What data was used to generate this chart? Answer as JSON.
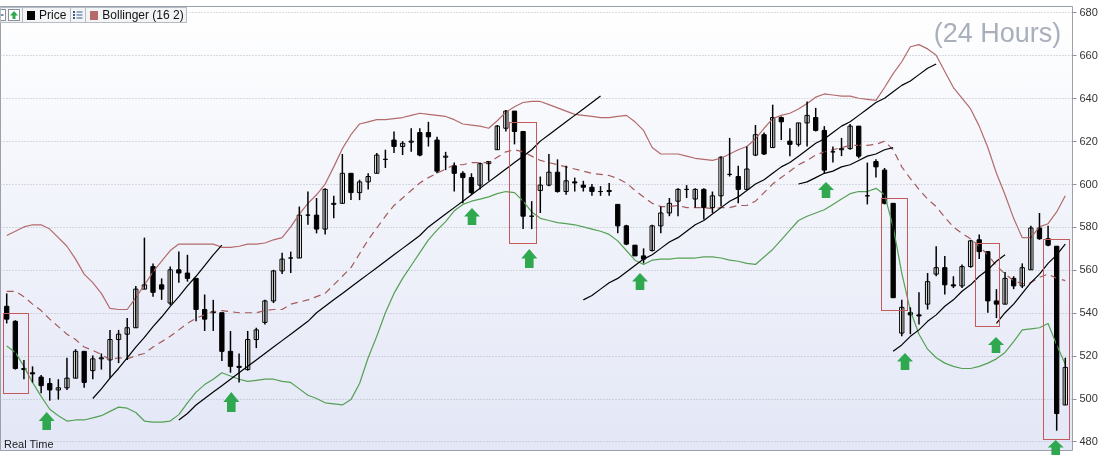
{
  "chart_data": {
    "type": "candlestick",
    "title": "(24 Hours)",
    "annotations": [
      "Real Time"
    ],
    "categories": [
      null,
      null,
      null,
      null,
      null,
      null,
      null,
      null,
      null,
      null,
      null,
      null,
      null,
      null,
      null,
      null,
      null,
      null,
      null,
      null,
      null,
      null,
      null,
      null,
      null,
      null,
      null,
      null,
      null,
      null,
      null,
      null,
      null,
      null,
      null,
      null,
      null,
      null,
      null,
      null,
      null,
      null,
      null,
      null,
      null,
      null,
      null,
      null,
      null,
      null,
      null,
      null,
      null,
      null,
      null,
      null,
      null,
      null,
      null,
      null,
      null,
      null,
      null,
      null,
      null,
      null,
      null,
      null,
      null,
      null,
      null,
      null,
      null,
      null,
      null,
      null,
      null,
      null,
      null,
      null,
      null,
      null,
      null,
      null,
      null,
      null,
      null,
      null,
      null,
      null,
      null,
      null,
      null,
      null,
      null,
      null,
      null,
      null,
      null,
      null,
      null,
      null,
      null,
      null,
      null,
      null,
      null,
      null,
      null,
      null,
      null,
      null,
      null,
      null,
      null,
      null,
      null,
      null,
      null,
      null,
      null,
      null,
      null,
      null
    ],
    "series": [
      {
        "name": "Price",
        "type": "candlestick",
        "color": "#000000",
        "ohlc": [
          [
            543,
            549,
            535,
            537
          ],
          [
            536,
            536.5,
            513.5,
            514
          ],
          [
            514,
            518,
            509,
            513.5
          ],
          [
            512,
            515,
            507.5,
            511.5
          ],
          [
            510,
            511,
            502.5,
            506
          ],
          [
            507,
            509.5,
            499,
            504
          ],
          [
            504,
            509,
            499.5,
            505
          ],
          [
            505,
            519,
            504,
            509.5
          ],
          [
            509.5,
            523,
            509.5,
            522
          ],
          [
            522,
            522,
            505,
            507.5
          ],
          [
            513,
            520,
            509,
            518.5
          ],
          [
            518.5,
            521,
            513.5,
            519
          ],
          [
            518,
            532,
            509.5,
            527.5
          ],
          [
            527.5,
            532,
            516.5,
            530
          ],
          [
            530,
            537.5,
            518,
            533
          ],
          [
            533,
            552.5,
            533,
            551
          ],
          [
            551,
            575,
            551,
            553
          ],
          [
            561.5,
            563,
            547.5,
            549.5
          ],
          [
            553,
            556,
            546,
            551
          ],
          [
            544.5,
            561.5,
            543.5,
            560
          ],
          [
            560,
            568.5,
            554,
            558.5
          ],
          [
            558.5,
            567,
            554.5,
            556
          ],
          [
            556,
            556,
            536,
            541.5
          ],
          [
            541.5,
            548.5,
            531.5,
            537
          ],
          [
            540.5,
            546,
            531.5,
            540
          ],
          [
            540,
            540,
            517.5,
            522
          ],
          [
            522,
            531.5,
            512,
            515
          ],
          [
            515,
            521,
            507.5,
            514.5
          ],
          [
            513.5,
            531.5,
            513,
            527.5
          ],
          [
            527.5,
            533,
            523.5,
            532
          ],
          [
            535.5,
            546,
            534.5,
            545.5
          ],
          [
            545.5,
            560,
            544.5,
            559.5
          ],
          [
            559.5,
            568,
            558,
            565
          ],
          [
            565.5,
            568.5,
            558.5,
            565.5
          ],
          [
            565.5,
            589.5,
            565.5,
            585.5
          ],
          [
            585.5,
            596.5,
            581,
            585.5
          ],
          [
            585.5,
            593.5,
            577,
            579
          ],
          [
            579,
            598,
            576.5,
            597.5
          ],
          [
            590.5,
            594.5,
            584,
            591
          ],
          [
            591,
            614,
            591,
            605
          ],
          [
            605,
            605,
            592.5,
            596
          ],
          [
            596,
            602,
            592.5,
            601
          ],
          [
            601,
            605,
            597.5,
            603.5
          ],
          [
            605,
            614.5,
            605,
            613.5
          ],
          [
            611.5,
            616,
            607.5,
            611.5
          ],
          [
            620.5,
            624.5,
            614.5,
            617.5
          ],
          [
            617.5,
            620,
            613.5,
            619
          ],
          [
            619.5,
            626,
            615,
            620
          ],
          [
            624,
            626,
            613,
            613.5
          ],
          [
            624,
            629,
            617.5,
            622
          ],
          [
            620.5,
            622,
            605,
            606
          ],
          [
            612.5,
            615,
            606.5,
            613
          ],
          [
            608.5,
            610,
            596.5,
            605
          ],
          [
            605,
            606,
            591,
            603
          ],
          [
            603,
            605,
            595,
            596
          ],
          [
            599.5,
            610,
            597.5,
            609.5
          ],
          [
            609.5,
            610.5,
            601.5,
            610.5
          ],
          [
            616,
            627.5,
            616,
            627
          ],
          [
            626,
            634.5,
            624.5,
            634
          ],
          [
            634,
            634,
            618.5,
            624.5
          ],
          [
            624.5,
            624.5,
            579,
            585
          ],
          [
            585,
            592,
            579,
            585
          ],
          [
            597,
            603.5,
            586.5,
            599.5
          ],
          [
            599.5,
            614,
            599,
            605.5
          ],
          [
            605.5,
            611.5,
            596,
            596.5
          ],
          [
            596.5,
            608.5,
            595,
            601.5
          ],
          [
            601,
            603,
            596.5,
            600.5
          ],
          [
            599.5,
            601.5,
            596.5,
            598.5
          ],
          [
            598.5,
            600,
            594.5,
            596.5
          ],
          [
            596.5,
            599,
            594.5,
            596.5
          ],
          [
            596.5,
            600.5,
            594.5,
            597
          ],
          [
            590.5,
            590.5,
            577,
            580.5
          ],
          [
            580.5,
            581,
            571.5,
            572
          ],
          [
            571.5,
            571.5,
            566.5,
            566.5
          ],
          [
            566.5,
            570,
            563,
            565
          ],
          [
            569,
            581,
            568.5,
            580.5
          ],
          [
            580.5,
            589.5,
            577,
            586.5
          ],
          [
            586.5,
            593.5,
            585,
            591
          ],
          [
            592,
            598,
            585,
            597.5
          ],
          [
            597.5,
            599.5,
            593.5,
            597.5
          ],
          [
            593,
            598,
            589,
            597.5
          ],
          [
            597.5,
            598,
            583.5,
            589
          ],
          [
            589,
            596.5,
            586.5,
            594.5
          ],
          [
            594.5,
            613,
            589.5,
            612.5
          ],
          [
            604.5,
            621.5,
            603.5,
            604.5
          ],
          [
            603.5,
            608.5,
            591,
            597.5
          ],
          [
            597.5,
            617.5,
            597.5,
            607
          ],
          [
            613.5,
            627.5,
            613,
            623
          ],
          [
            623,
            624,
            613.5,
            614
          ],
          [
            617,
            637,
            617,
            631
          ],
          [
            631,
            631.5,
            620.5,
            629
          ],
          [
            620,
            626,
            613,
            618.5
          ],
          [
            618.5,
            628.5,
            617.5,
            628.5
          ],
          [
            628.5,
            638.5,
            617.5,
            632
          ],
          [
            631,
            635.5,
            624.5,
            625
          ],
          [
            625,
            627,
            605,
            606.5
          ],
          [
            615,
            617.5,
            610,
            615
          ],
          [
            616,
            621.5,
            613,
            616.5
          ],
          [
            616.5,
            628,
            616,
            627
          ],
          [
            627,
            627,
            612,
            613
          ],
          [
            594.5,
            610,
            590.5,
            594.5
          ],
          [
            610.5,
            611.5,
            603,
            608
          ],
          [
            606.5,
            607.5,
            590.5,
            591
          ],
          [
            591,
            591,
            547,
            547
          ],
          [
            530.5,
            546,
            529,
            542.5
          ],
          [
            540,
            542.5,
            530,
            539
          ],
          [
            539,
            549.5,
            534.5,
            538.5
          ],
          [
            544,
            558.5,
            541.5,
            554.5
          ],
          [
            558,
            571,
            557,
            561
          ],
          [
            561,
            566.5,
            548.5,
            553
          ],
          [
            553,
            557,
            551.5,
            552.5
          ],
          [
            552.5,
            562.5,
            551.5,
            561.5
          ],
          [
            561.5,
            574,
            561,
            573.5
          ],
          [
            574,
            576.5,
            565,
            568.5
          ],
          [
            568.5,
            568.5,
            540,
            545.5
          ],
          [
            545.5,
            551,
            537.5,
            544
          ],
          [
            544,
            559,
            544,
            556
          ],
          [
            556,
            557,
            551,
            552.5
          ],
          [
            552.5,
            563,
            551.5,
            561
          ],
          [
            560,
            580.5,
            560,
            579.5
          ],
          [
            579.5,
            586.5,
            574,
            574.5
          ],
          [
            574.5,
            580.5,
            571,
            571.5
          ],
          [
            571,
            571,
            485,
            493
          ],
          [
            497,
            519,
            497,
            514.5
          ]
        ]
      },
      {
        "name": "Bollinger (16 2)",
        "type": "line",
        "color": "#b46a6a",
        "values": [
          576,
          578,
          580,
          581,
          581,
          579,
          575,
          571,
          565,
          558,
          554,
          549,
          542,
          541.5,
          541.5,
          547,
          553,
          559,
          564,
          569,
          572,
          572,
          572,
          572,
          572,
          570.5,
          570.5,
          571,
          572,
          572,
          572.5,
          574,
          575,
          580,
          586,
          591,
          595,
          600,
          608,
          616.5,
          623,
          628,
          629,
          630,
          630,
          630.5,
          631,
          632,
          633,
          632.5,
          632,
          631.5,
          630,
          628,
          627.5,
          627,
          626,
          629.5,
          633.5,
          636,
          638,
          638.5,
          638.5,
          637,
          635.5,
          634,
          632.5,
          632,
          631.5,
          631,
          631,
          631.5,
          632,
          629,
          625,
          617,
          614,
          614,
          614,
          613,
          612,
          611.5,
          611,
          612,
          614,
          616,
          617.5,
          621,
          626,
          630.5,
          632,
          633,
          635,
          637.5,
          640.5,
          642,
          641.5,
          641,
          641,
          640,
          639.5,
          639,
          645,
          651.5,
          657,
          664,
          665,
          663,
          660,
          652.5,
          645,
          640,
          635,
          627,
          617,
          605,
          595,
          584,
          575,
          575,
          580,
          581.5,
          587,
          594.5
        ]
      },
      {
        "type": "line",
        "color": "#a45a5a",
        "line_style": "dashed",
        "values": [
          550,
          550,
          547.5,
          544,
          541,
          537,
          533.5,
          530,
          527.5,
          524,
          522.5,
          520.5,
          518,
          519,
          518.5,
          520,
          521,
          524,
          526.5,
          529,
          532,
          535,
          537.5,
          539,
          540.5,
          541,
          540.5,
          540,
          540,
          540,
          541,
          541.5,
          541.5,
          544,
          545,
          546,
          547.5,
          549,
          553,
          557,
          561,
          567.5,
          574,
          579.5,
          585,
          590,
          593.5,
          597,
          600.5,
          603,
          605,
          607,
          609,
          609,
          610,
          610,
          610,
          612.5,
          615,
          616,
          615,
          613,
          611,
          610,
          609,
          608,
          607,
          606,
          605,
          604.5,
          604,
          602.5,
          600.5,
          597,
          594,
          591,
          589.5,
          589.5,
          590,
          589,
          589,
          589,
          588.5,
          589,
          589,
          590,
          590,
          592,
          596,
          600,
          603,
          606,
          609,
          611,
          613.5,
          615,
          616,
          617,
          618,
          618,
          618,
          618.5,
          620,
          616,
          608,
          602.5,
          597.5,
          593,
          589.5,
          584.5,
          580,
          577,
          574.5,
          571,
          567,
          562,
          558,
          555,
          553.5,
          554,
          556.5,
          558,
          556,
          555
        ]
      },
      {
        "type": "line",
        "color": "#55a055",
        "values": [
          524.5,
          521.5,
          515,
          507.5,
          501,
          495,
          492,
          489.5,
          490,
          490,
          491,
          492,
          494,
          496,
          495.5,
          493.5,
          489.5,
          489,
          489,
          489.5,
          492.5,
          498,
          503,
          506.5,
          509,
          512,
          510.5,
          509,
          508,
          508.5,
          509,
          509,
          508,
          507.5,
          504.5,
          501.5,
          500,
          498,
          497.5,
          497,
          499.5,
          507,
          519,
          529,
          540,
          549,
          556,
          562,
          568,
          574,
          578.5,
          582.5,
          587.5,
          590.5,
          592,
          593,
          594,
          595.5,
          596.5,
          596,
          592,
          587,
          584,
          583,
          582,
          581.5,
          581,
          580,
          579,
          578,
          576.5,
          573.5,
          569,
          564.5,
          562.5,
          564.5,
          565,
          565,
          565.5,
          565.5,
          565.5,
          566,
          566,
          565.5,
          564.5,
          564,
          563,
          562.5,
          566,
          569.5,
          574,
          578.5,
          583,
          585,
          586.5,
          588,
          590.5,
          593,
          595.5,
          596.5,
          596.5,
          598,
          595,
          580,
          558.5,
          541,
          530,
          523,
          519,
          516.5,
          515,
          514,
          514,
          515,
          516.5,
          518.5,
          521.5,
          526.5,
          532,
          532.5,
          533,
          535,
          525,
          516
        ]
      },
      {
        "type": "line",
        "color": "#000000",
        "values": [
          null,
          null,
          null,
          null,
          null,
          null,
          null,
          null,
          null,
          null,
          500,
          504.5,
          509.5,
          514,
          519,
          524,
          528.5,
          533.5,
          538,
          543,
          547.5,
          552.5,
          557,
          562,
          567,
          571.5,
          null,
          null,
          null,
          null,
          null,
          null,
          null,
          null,
          null,
          null,
          null,
          null,
          null,
          null,
          null,
          null,
          null,
          null,
          null,
          null,
          null,
          null,
          null,
          null,
          null,
          null,
          null,
          null,
          null,
          null,
          null,
          null,
          null,
          null,
          null,
          null,
          null,
          null,
          null,
          null,
          null,
          null,
          null,
          null,
          null,
          null,
          null,
          null,
          null,
          null,
          null,
          null,
          null,
          null,
          null,
          null,
          null,
          null,
          null,
          null,
          null,
          null,
          null,
          null,
          null,
          null,
          null,
          null,
          null,
          null,
          null,
          null,
          null,
          null,
          null,
          null,
          null,
          null,
          null,
          null,
          null,
          null,
          null,
          null,
          null,
          null,
          null,
          null,
          null,
          null,
          null,
          null,
          null,
          null,
          null,
          null,
          null,
          null
        ]
      },
      {
        "type": "line",
        "color": "#000000",
        "values": [
          null,
          null,
          null,
          null,
          null,
          null,
          null,
          null,
          null,
          null,
          null,
          null,
          null,
          null,
          null,
          null,
          null,
          null,
          null,
          null,
          490,
          493,
          497,
          500,
          503,
          506,
          509,
          512,
          515,
          518,
          521,
          524,
          527,
          530,
          533,
          536,
          540,
          543,
          546,
          549,
          552,
          555,
          558,
          561,
          564,
          567,
          570,
          573,
          576,
          580,
          583,
          586,
          589,
          592,
          595,
          598,
          601,
          604,
          607,
          610,
          613,
          616,
          620,
          623,
          626,
          629,
          632,
          635,
          638,
          641,
          null,
          null,
          null,
          null,
          null,
          null,
          null,
          null,
          null,
          null,
          null,
          null,
          null,
          null,
          null,
          null,
          null,
          null,
          null,
          null,
          null,
          null,
          null,
          null,
          null,
          null,
          null,
          null,
          null,
          null,
          null,
          null,
          null,
          null,
          null,
          null,
          null,
          null,
          null,
          null,
          null,
          null,
          null,
          null,
          null,
          null,
          null,
          null,
          null,
          null,
          null,
          null,
          null,
          null
        ]
      },
      {
        "type": "line",
        "color": "#000000",
        "values": [
          null,
          null,
          null,
          null,
          null,
          null,
          null,
          null,
          null,
          null,
          null,
          null,
          null,
          null,
          null,
          null,
          null,
          null,
          null,
          null,
          null,
          null,
          null,
          null,
          null,
          null,
          null,
          null,
          null,
          null,
          null,
          null,
          null,
          null,
          null,
          null,
          null,
          null,
          null,
          null,
          null,
          null,
          null,
          null,
          null,
          null,
          null,
          null,
          null,
          null,
          null,
          null,
          null,
          null,
          null,
          null,
          null,
          null,
          null,
          null,
          null,
          null,
          null,
          null,
          null,
          null,
          null,
          546,
          548,
          551,
          554,
          556,
          559,
          562,
          565,
          567,
          570,
          573,
          575,
          578,
          581,
          583,
          586,
          589,
          592,
          594,
          597,
          600,
          602,
          605,
          608,
          610,
          613,
          616,
          619,
          621,
          624,
          627,
          629,
          632,
          635,
          638,
          640,
          643,
          646,
          648,
          651,
          654,
          656,
          null,
          null,
          null,
          null,
          null,
          null,
          null,
          null,
          null,
          null,
          null,
          null,
          null,
          null,
          null
        ]
      },
      {
        "type": "line",
        "color": "#000000",
        "values": [
          null,
          null,
          null,
          null,
          null,
          null,
          null,
          null,
          null,
          null,
          null,
          null,
          null,
          null,
          null,
          null,
          null,
          null,
          null,
          null,
          null,
          null,
          null,
          null,
          null,
          null,
          null,
          null,
          null,
          null,
          null,
          null,
          null,
          null,
          null,
          null,
          null,
          null,
          null,
          null,
          null,
          null,
          null,
          null,
          null,
          null,
          null,
          null,
          null,
          null,
          null,
          null,
          null,
          null,
          null,
          null,
          null,
          null,
          null,
          null,
          null,
          null,
          null,
          null,
          null,
          null,
          null,
          null,
          null,
          null,
          null,
          null,
          null,
          null,
          null,
          null,
          null,
          null,
          null,
          null,
          null,
          null,
          null,
          null,
          null,
          null,
          null,
          null,
          null,
          null,
          null,
          null,
          600,
          601,
          603,
          605,
          606,
          608,
          609,
          611,
          613,
          614,
          616,
          617,
          null,
          null,
          null,
          null,
          null,
          null,
          null,
          null,
          null,
          null,
          null,
          null,
          null,
          null,
          null,
          null,
          null,
          null,
          null,
          null
        ]
      },
      {
        "type": "line",
        "color": "#000000",
        "values": [
          null,
          null,
          null,
          null,
          null,
          null,
          null,
          null,
          null,
          null,
          null,
          null,
          null,
          null,
          null,
          null,
          null,
          null,
          null,
          null,
          null,
          null,
          null,
          null,
          null,
          null,
          null,
          null,
          null,
          null,
          null,
          null,
          null,
          null,
          null,
          null,
          null,
          null,
          null,
          null,
          null,
          null,
          null,
          null,
          null,
          null,
          null,
          null,
          null,
          null,
          null,
          null,
          null,
          null,
          null,
          null,
          null,
          null,
          null,
          null,
          null,
          null,
          null,
          null,
          null,
          null,
          null,
          null,
          null,
          null,
          null,
          null,
          null,
          null,
          null,
          null,
          null,
          null,
          null,
          null,
          null,
          null,
          null,
          null,
          null,
          null,
          null,
          null,
          null,
          null,
          null,
          null,
          null,
          null,
          null,
          null,
          null,
          null,
          null,
          null,
          null,
          null,
          null,
          522,
          525,
          529,
          532,
          536,
          539,
          543,
          546,
          550,
          553,
          557,
          560,
          564,
          567,
          null,
          null,
          null,
          null,
          null,
          null,
          null
        ]
      },
      {
        "type": "line",
        "color": "#000000",
        "values": [
          null,
          null,
          null,
          null,
          null,
          null,
          null,
          null,
          null,
          null,
          null,
          null,
          null,
          null,
          null,
          null,
          null,
          null,
          null,
          null,
          null,
          null,
          null,
          null,
          null,
          null,
          null,
          null,
          null,
          null,
          null,
          null,
          null,
          null,
          null,
          null,
          null,
          null,
          null,
          null,
          null,
          null,
          null,
          null,
          null,
          null,
          null,
          null,
          null,
          null,
          null,
          null,
          null,
          null,
          null,
          null,
          null,
          null,
          null,
          null,
          null,
          null,
          null,
          null,
          null,
          null,
          null,
          null,
          null,
          null,
          null,
          null,
          null,
          null,
          null,
          null,
          null,
          null,
          null,
          null,
          null,
          null,
          null,
          null,
          null,
          null,
          null,
          null,
          null,
          null,
          null,
          null,
          null,
          null,
          null,
          null,
          null,
          null,
          null,
          null,
          null,
          null,
          null,
          null,
          null,
          null,
          null,
          null,
          null,
          null,
          null,
          null,
          null,
          null,
          null,
          535,
          540,
          544,
          549,
          554,
          558,
          563,
          567,
          572
        ]
      }
    ],
    "ylim": [
      476,
      683
    ],
    "yticks": [
      480,
      500,
      520,
      540,
      560,
      580,
      600,
      620,
      640,
      660,
      680
    ],
    "grid": "y",
    "legend": "top left",
    "tick_labels": "y"
  }
}
